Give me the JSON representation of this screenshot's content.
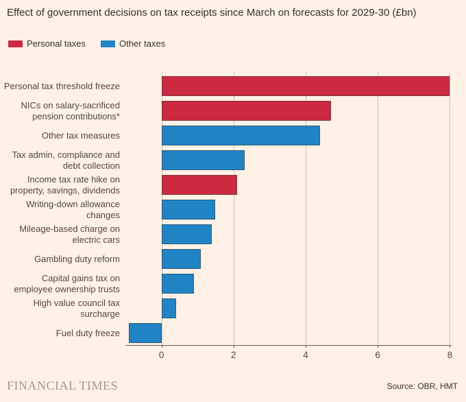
{
  "title": "Effect of government decisions on tax receipts since March on forecasts for 2029-30 (£bn)",
  "legend": [
    {
      "label": "Personal taxes",
      "color": "#cc2a42"
    },
    {
      "label": "Other taxes",
      "color": "#2084c5"
    }
  ],
  "footer": {
    "logo": "FINANCIAL TIMES",
    "source": "Source: OBR, HMT"
  },
  "colors": {
    "background": "#fff1e5",
    "personal_taxes": "#cc2a42",
    "other_taxes": "#2084c5",
    "gridline": "#ccc1b5",
    "axis": "#66605b",
    "text": "#33302e",
    "label_text": "#4d4845",
    "logo_text": "#a5998c"
  },
  "chart_data": {
    "type": "bar",
    "orientation": "horizontal",
    "title": "Effect of government decisions on tax receipts since March on forecasts for 2029-30 (£bn)",
    "unit": "£bn",
    "legend_position": "top",
    "grid": true,
    "xlim": [
      -1.0,
      8.05
    ],
    "xticks": [
      0,
      2,
      4,
      6,
      8
    ],
    "categories": [
      "Personal tax threshold freeze",
      "NICs on salary-sacrificed pension contributions*",
      "Other tax measures",
      "Tax admin, compliance and debt collection",
      "Income tax rate hike on property, savings, dividends",
      "Writing-down allowance changes",
      "Mileage-based charge on electric cars",
      "Gambling duty reform",
      "Capital gains tax on employee ownership trusts",
      "High value council tax surcharge",
      "Fuel duty freeze"
    ],
    "label_lines": [
      [
        "Personal tax threshold freeze"
      ],
      [
        "NICs on salary-sacrificed",
        "pension contributions*"
      ],
      [
        "Other tax measures"
      ],
      [
        "Tax admin, compliance and",
        "debt collection"
      ],
      [
        "Income tax rate hike on",
        "property, savings, dividends"
      ],
      [
        "Writing-down allowance",
        "changes"
      ],
      [
        "Mileage-based charge on",
        "electric cars"
      ],
      [
        "Gambling duty reform"
      ],
      [
        "Capital gains tax on",
        "employee ownership trusts"
      ],
      [
        "High value council tax",
        "surcharge"
      ],
      [
        "Fuel duty freeze"
      ]
    ],
    "values": [
      8.0,
      4.7,
      4.4,
      2.3,
      2.1,
      1.5,
      1.4,
      1.1,
      0.9,
      0.4,
      -0.9
    ],
    "series_of": [
      "Personal taxes",
      "Personal taxes",
      "Other taxes",
      "Other taxes",
      "Personal taxes",
      "Other taxes",
      "Other taxes",
      "Other taxes",
      "Other taxes",
      "Other taxes",
      "Other taxes"
    ]
  }
}
